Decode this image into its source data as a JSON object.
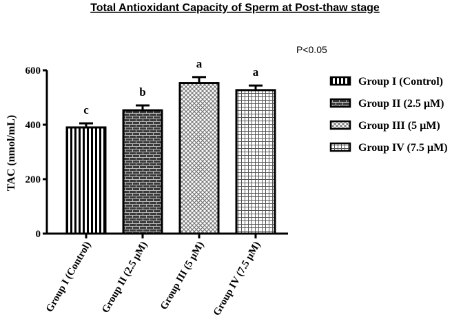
{
  "chart_data": {
    "type": "bar",
    "title": "Total Antioxidant Capacity of Sperm at Post-thaw stage",
    "annotation": "P<0.05",
    "ylabel": "TAC (nmol/mL)",
    "xlabel": "",
    "ylim": [
      0,
      600
    ],
    "yticks": [
      0,
      200,
      400,
      600
    ],
    "grid": false,
    "legend_position": "right",
    "categories": [
      "Group I (Control)",
      "Group II (2.5 µM)",
      "Group III (5 µM)",
      "Group IV (7.5 µM)"
    ],
    "values": [
      390,
      453,
      553,
      527
    ],
    "errors": [
      15,
      18,
      22,
      17
    ],
    "significance_letters": [
      "c",
      "b",
      "a",
      "a"
    ],
    "legend": [
      "Group I (Control)",
      "Group II (2.5 µM)",
      "Group III (5 µM)",
      "Group IV (7.5 µM)"
    ],
    "patterns": [
      "vertical-stripes",
      "brick",
      "diagonal-mesh",
      "grid-squares"
    ]
  }
}
